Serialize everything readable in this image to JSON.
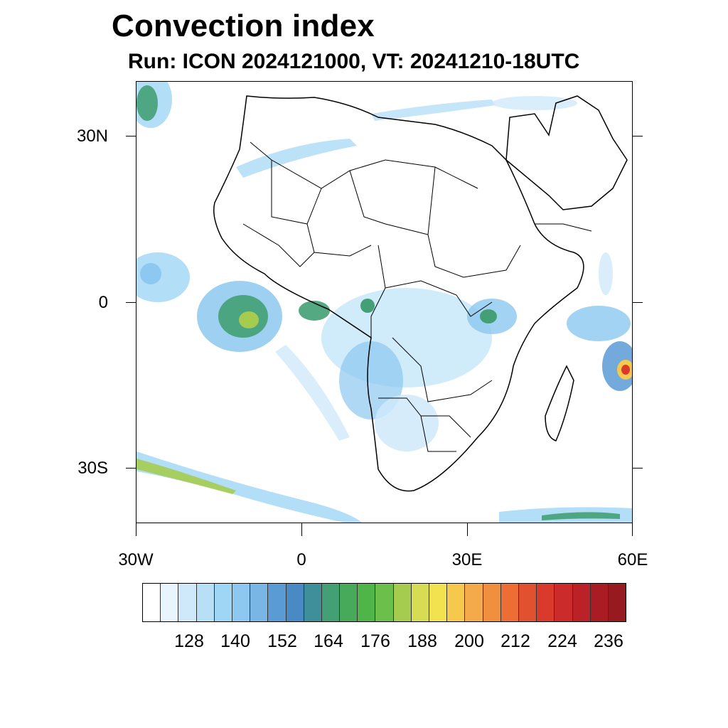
{
  "title": "Convection index",
  "subtitle": "Run: ICON 2024121000,  VT: 20241210-18UTC",
  "axes": {
    "lat_labels": [
      "30N",
      "0",
      "30S"
    ],
    "lon_labels": [
      "30W",
      "0",
      "30E",
      "60E"
    ]
  },
  "colorbar": {
    "labels": [
      "128",
      "140",
      "152",
      "164",
      "176",
      "188",
      "200",
      "212",
      "224",
      "236"
    ],
    "colors": [
      "#ffffff",
      "#e8f5fd",
      "#cfe9fa",
      "#b7e0f7",
      "#9fd6f5",
      "#8cc8ef",
      "#79b6e6",
      "#5b9bd5",
      "#4a8ac4",
      "#3f8f9a",
      "#43a074",
      "#46aa5a",
      "#50b548",
      "#6cbf4a",
      "#a5cc4f",
      "#d6dd52",
      "#f2e24f",
      "#f6c84c",
      "#f4a94a",
      "#f08f3e",
      "#ec6e35",
      "#e2512f",
      "#d93a2c",
      "#cc2b2b",
      "#bb2228",
      "#a91c24",
      "#961a20"
    ]
  }
}
